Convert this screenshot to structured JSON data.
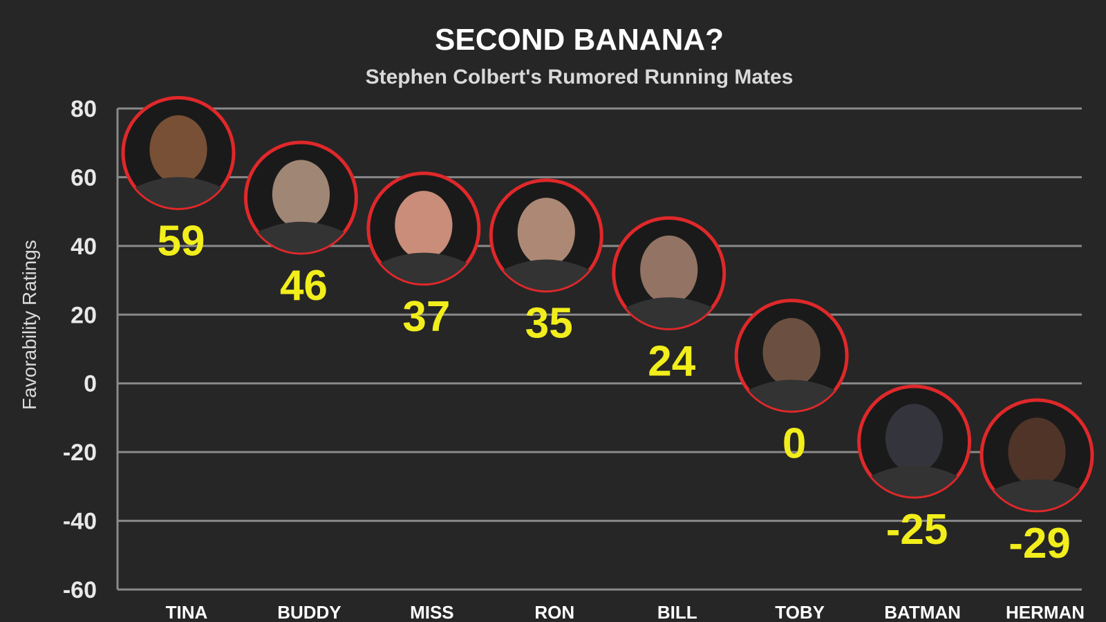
{
  "chart_data": {
    "type": "scatter",
    "title": "SECOND BANANA?",
    "subtitle": "Stephen Colbert's Rumored Running Mates",
    "ylabel": "Favorability Ratings",
    "xlabel": "",
    "ylim": [
      -60,
      80
    ],
    "yticks": [
      "80",
      "60",
      "40",
      "20",
      "0",
      "-20",
      "-40",
      "-60"
    ],
    "grid": true,
    "categories": [
      "TINA",
      "BUDDY",
      "MISS",
      "RON",
      "BILL",
      "TOBY",
      "BATMAN",
      "HERMAN"
    ],
    "values": [
      59,
      46,
      37,
      35,
      24,
      0,
      -25,
      -29
    ],
    "value_labels": [
      "59",
      "46",
      "37",
      "35",
      "24",
      "0",
      "-25",
      "-29"
    ],
    "marker": "circular-portrait-photo",
    "colors": {
      "background": "#262626",
      "marker_ring": "#e0282a",
      "value_label": "#f2ee1b",
      "grid": "#8a8a8a"
    }
  }
}
